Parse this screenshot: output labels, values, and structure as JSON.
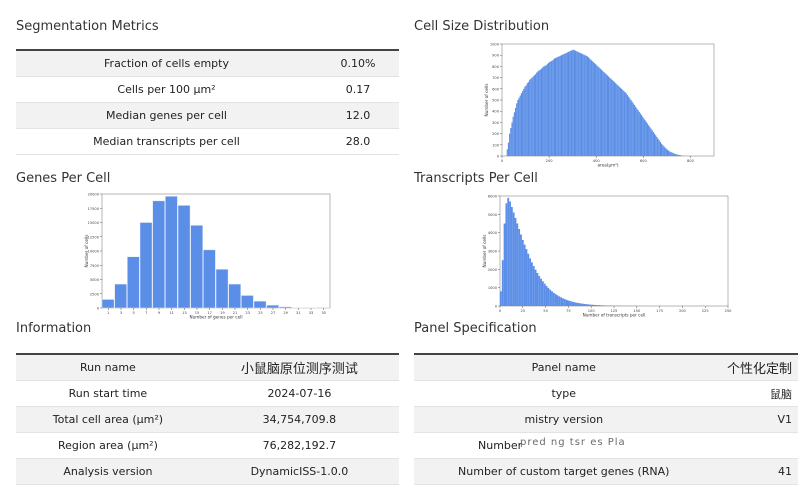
{
  "segmentation": {
    "title": "Segmentation Metrics",
    "rows": [
      {
        "label": "Fraction of cells empty",
        "value": "0.10%"
      },
      {
        "label": "Cells per 100 μm²",
        "value": "0.17"
      },
      {
        "label": "Median genes per cell",
        "value": "12.0"
      },
      {
        "label": "Median transcripts per cell",
        "value": "28.0"
      }
    ]
  },
  "cell_size": {
    "title": "Cell Size Distribution",
    "ylabel": "Number of cells",
    "xlabel": "area(μm²)"
  },
  "genes_per_cell": {
    "title": "Genes Per Cell",
    "ylabel": "Number of cells",
    "xlabel": "Number of genes per cell"
  },
  "transcripts_per_cell": {
    "title": "Transcripts Per Cell",
    "ylabel": "Number of cells",
    "xlabel": "Number of transcripts per cell"
  },
  "information": {
    "title": "Information",
    "rows": [
      {
        "label": "Run name",
        "value": "小鼠脑原位测序测试"
      },
      {
        "label": "Run start time",
        "value": "2024-07-16"
      },
      {
        "label": "Total cell area (μm²)",
        "value": "34,754,709.8"
      },
      {
        "label": "Region area (μm²)",
        "value": "76,282,192.7"
      },
      {
        "label": "Analysis version",
        "value": "DynamicISS-1.0.0"
      }
    ]
  },
  "panel": {
    "title": "Panel Specification",
    "rows": [
      {
        "label": "Panel name",
        "value": "个性化定制"
      },
      {
        "label": "type",
        "value": "鼠脑"
      },
      {
        "label": "mistry version",
        "value": "V1"
      },
      {
        "label": "Number",
        "value": ""
      },
      {
        "label": "Number of custom target genes (RNA)",
        "value": "41"
      }
    ],
    "watermark": "pred ng tsr es Pla"
  },
  "chart_data": [
    {
      "type": "bar",
      "name": "Cell Size Distribution",
      "xlabel": "area(μm²)",
      "ylabel": "Number of cells",
      "xlim": [
        0,
        900
      ],
      "ylim": [
        0,
        1000
      ],
      "xticks": [
        0,
        200,
        400,
        600,
        800
      ],
      "yticks": [
        0,
        100,
        200,
        300,
        400,
        500,
        600,
        700,
        800,
        900,
        1000
      ],
      "bin_width": 5,
      "x_start": 20,
      "values": [
        60,
        120,
        200,
        250,
        300,
        350,
        390,
        430,
        470,
        500,
        520,
        540,
        560,
        580,
        600,
        620,
        630,
        650,
        660,
        680,
        690,
        700,
        710,
        720,
        730,
        745,
        755,
        765,
        770,
        780,
        790,
        800,
        805,
        810,
        820,
        830,
        840,
        845,
        850,
        860,
        870,
        875,
        880,
        885,
        890,
        895,
        900,
        905,
        910,
        915,
        920,
        925,
        930,
        935,
        940,
        945,
        950,
        945,
        940,
        935,
        930,
        925,
        920,
        915,
        910,
        905,
        900,
        895,
        890,
        880,
        870,
        860,
        850,
        840,
        830,
        820,
        810,
        800,
        790,
        780,
        770,
        760,
        750,
        740,
        730,
        720,
        710,
        700,
        690,
        680,
        670,
        660,
        650,
        640,
        630,
        620,
        610,
        600,
        590,
        580,
        570,
        560,
        545,
        530,
        515,
        500,
        485,
        470,
        455,
        440,
        425,
        410,
        395,
        380,
        365,
        350,
        335,
        320,
        305,
        290,
        275,
        260,
        245,
        230,
        215,
        200,
        185,
        170,
        155,
        140,
        125,
        110,
        98,
        86,
        75,
        65,
        56,
        48,
        41,
        35,
        30,
        25,
        21,
        17,
        14,
        11,
        9,
        7,
        5,
        4
      ]
    },
    {
      "type": "bar",
      "name": "Genes Per Cell",
      "xlabel": "Number of genes per cell",
      "ylabel": "Number of cells",
      "xlim": [
        0,
        36
      ],
      "ylim": [
        0,
        20000
      ],
      "xticks": [
        1,
        3,
        5,
        7,
        9,
        11,
        13,
        15,
        17,
        19,
        21,
        23,
        25,
        27,
        29,
        31,
        33,
        35
      ],
      "yticks": [
        0,
        2500,
        5000,
        7500,
        10000,
        12500,
        15000,
        17500,
        20000
      ],
      "bin_width": 2,
      "x_start": 0,
      "values": [
        1500,
        4200,
        9000,
        15000,
        18800,
        19600,
        18000,
        14500,
        10200,
        6800,
        4200,
        2200,
        1200,
        500,
        200,
        80,
        30,
        10
      ]
    },
    {
      "type": "bar",
      "name": "Transcripts Per Cell",
      "xlabel": "Number of transcripts per cell",
      "ylabel": "Number of cells",
      "xlim": [
        0,
        250
      ],
      "ylim": [
        0,
        6000
      ],
      "xticks": [
        0,
        25,
        50,
        75,
        100,
        125,
        150,
        175,
        200,
        225,
        250
      ],
      "yticks": [
        0,
        1000,
        2000,
        3000,
        4000,
        5000,
        6000
      ],
      "bin_width": 2,
      "x_start": 0,
      "values": [
        800,
        2500,
        4500,
        5600,
        5900,
        5700,
        5400,
        5100,
        4800,
        4500,
        4200,
        3900,
        3600,
        3350,
        3100,
        2850,
        2600,
        2380,
        2180,
        1980,
        1800,
        1640,
        1490,
        1350,
        1220,
        1100,
        990,
        890,
        800,
        720,
        650,
        585,
        525,
        470,
        420,
        375,
        335,
        300,
        270,
        240,
        215,
        192,
        172,
        154,
        138,
        124,
        111,
        99,
        88,
        78,
        70,
        62,
        55,
        49,
        44,
        39,
        35,
        31,
        28,
        25,
        22,
        20,
        18,
        16,
        14,
        12,
        11,
        10,
        9,
        8,
        7,
        6,
        6,
        5,
        5,
        4,
        4,
        3,
        3,
        3,
        2,
        2,
        2,
        2,
        2,
        1,
        1,
        1,
        1,
        1,
        1,
        1,
        1,
        1,
        1,
        1,
        1,
        1,
        1,
        1,
        1,
        1,
        1,
        1,
        1,
        1,
        1,
        1,
        1,
        1,
        1,
        1,
        1,
        1,
        1,
        1,
        1,
        1,
        1,
        1
      ]
    }
  ]
}
